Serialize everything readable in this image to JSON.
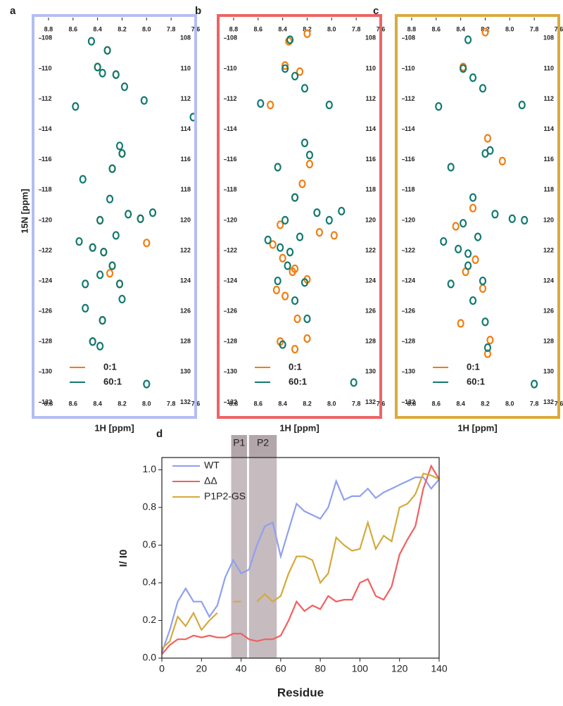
{
  "chart_data": [
    {
      "type": "scatter",
      "label": "a",
      "frame_color": "#b4bdf2",
      "xlabel": "1H [ppm]",
      "ylabel": "15N [ppm]",
      "xlim": [
        8.88,
        7.6
      ],
      "ylim": [
        106.5,
        133
      ],
      "xticks": [
        8.8,
        8.6,
        8.4,
        8.2,
        {
          "value": 8,
          "label": "8.0"
        },
        7.8,
        7.6
      ],
      "yticks": [
        108,
        110,
        112,
        114,
        116,
        118,
        120,
        122,
        124,
        126,
        128,
        130,
        132
      ],
      "series": [
        {
          "name": "0:1",
          "color": "#f07d10",
          "x": [
            8.32,
            8.4,
            8.25,
            8.28,
            8.2,
            8.38,
            8.05,
            8.44,
            8.35,
            8.28,
            8.3,
            8.22,
            8.36,
            8.44,
            8.0
          ],
          "y": [
            108.8,
            109.9,
            110.4,
            116.6,
            115.6,
            120.0,
            119.9,
            121.8,
            122.1,
            123.0,
            123.5,
            124.2,
            126.6,
            128.0,
            121.5
          ]
        },
        {
          "name": "60:1",
          "color": "#127a70",
          "x": [
            8.45,
            8.32,
            8.4,
            8.36,
            8.25,
            8.18,
            8.58,
            8.02,
            8.22,
            8.2,
            8.28,
            8.52,
            8.3,
            8.38,
            8.15,
            8.05,
            7.95,
            8.55,
            8.44,
            8.35,
            8.25,
            8.28,
            8.38,
            8.22,
            8.5,
            8.2,
            8.5,
            8.36,
            8.44,
            8.38,
            8.0,
            7.62
          ],
          "y": [
            108.2,
            108.8,
            109.9,
            110.3,
            110.4,
            111.2,
            112.5,
            112.1,
            115.1,
            115.6,
            116.6,
            117.3,
            118.6,
            120.0,
            119.6,
            119.9,
            119.5,
            121.4,
            121.8,
            122.1,
            121.0,
            123.0,
            123.6,
            124.2,
            124.2,
            125.2,
            125.8,
            126.6,
            128.0,
            128.3,
            130.8,
            113.2
          ]
        }
      ]
    },
    {
      "type": "scatter",
      "label": "b",
      "frame_color": "#ee6464",
      "xlabel": "1H [ppm]",
      "xlim": [
        8.88,
        7.6
      ],
      "ylim": [
        106.5,
        133
      ],
      "xticks": [
        8.8,
        8.6,
        8.4,
        8.2,
        {
          "value": 8,
          "label": "8.0"
        },
        7.8,
        7.6
      ],
      "yticks": [
        108,
        110,
        112,
        114,
        116,
        118,
        120,
        122,
        124,
        126,
        128,
        130,
        132
      ],
      "series": [
        {
          "name": "0:1",
          "color": "#f07d10",
          "x": [
            8.2,
            8.35,
            8.38,
            8.26,
            8.5,
            8.18,
            8.24,
            8.3,
            8.42,
            8.1,
            8.48,
            8.4,
            8.3,
            8.32,
            8.2,
            8.45,
            8.38,
            8.28,
            8.2,
            8.42,
            8.3,
            7.98
          ],
          "y": [
            107.7,
            108.2,
            109.8,
            110.2,
            112.4,
            116.3,
            117.6,
            118.5,
            120.3,
            120.8,
            121.6,
            122.5,
            123.2,
            123.4,
            123.9,
            124.6,
            125.0,
            126.5,
            127.8,
            128.0,
            128.5,
            121.0
          ]
        },
        {
          "name": "60:1",
          "color": "#127a70",
          "x": [
            8.34,
            8.38,
            8.3,
            8.22,
            8.58,
            8.02,
            8.22,
            8.18,
            8.44,
            8.3,
            8.38,
            8.12,
            8.02,
            7.92,
            8.52,
            8.42,
            8.34,
            8.26,
            8.36,
            8.22,
            8.44,
            8.3,
            8.2,
            8.4,
            7.82
          ],
          "y": [
            108.1,
            110.0,
            110.5,
            111.3,
            112.3,
            112.4,
            114.9,
            115.7,
            116.5,
            118.5,
            120.0,
            119.5,
            120.0,
            119.4,
            121.3,
            121.8,
            122.1,
            121.1,
            123.0,
            124.1,
            124.0,
            125.3,
            126.5,
            128.2,
            130.7
          ]
        }
      ]
    },
    {
      "type": "scatter",
      "label": "c",
      "frame_color": "#dcaa3c",
      "xlabel": "1H [ppm]",
      "xlim": [
        8.88,
        7.6
      ],
      "ylim": [
        106.5,
        133
      ],
      "xticks": [
        8.8,
        8.6,
        8.4,
        8.2,
        {
          "value": 8,
          "label": "8.0"
        },
        7.8,
        7.6
      ],
      "yticks": [
        108,
        110,
        112,
        114,
        116,
        118,
        120,
        122,
        124,
        126,
        128,
        130,
        132
      ],
      "series": [
        {
          "name": "0:1",
          "color": "#f07d10",
          "x": [
            8.2,
            8.38,
            8.18,
            8.06,
            8.3,
            8.44,
            8.28,
            8.36,
            8.22,
            8.4,
            8.16,
            8.18
          ],
          "y": [
            107.6,
            109.9,
            114.6,
            116.1,
            119.2,
            120.4,
            122.6,
            123.4,
            124.5,
            126.8,
            127.9,
            128.8
          ]
        },
        {
          "name": "60:1",
          "color": "#127a70",
          "x": [
            8.34,
            8.38,
            8.3,
            8.22,
            8.58,
            7.9,
            8.2,
            8.16,
            8.48,
            8.3,
            8.38,
            8.12,
            7.98,
            7.88,
            8.54,
            8.42,
            8.34,
            8.26,
            8.34,
            8.22,
            8.48,
            8.3,
            8.2,
            8.18,
            7.8
          ],
          "y": [
            108.1,
            110.0,
            110.6,
            111.3,
            112.5,
            112.4,
            115.6,
            115.4,
            116.5,
            118.5,
            120.2,
            119.6,
            119.9,
            120.0,
            121.4,
            121.9,
            122.2,
            121.1,
            123.0,
            124.0,
            124.2,
            125.3,
            126.7,
            128.4,
            130.8
          ]
        }
      ]
    },
    {
      "type": "line",
      "label": "d",
      "xlabel": "Residue",
      "ylabel": "I/ I0",
      "xlim": [
        0,
        140
      ],
      "ylim": [
        0,
        1.065
      ],
      "xticks": [
        0,
        20,
        40,
        60,
        80,
        100,
        120,
        140
      ],
      "yticks": [
        {
          "value": 0,
          "label": "0.0"
        },
        0.2,
        0.4,
        0.6,
        0.8,
        {
          "value": 1,
          "label": "1.0"
        }
      ],
      "regions": [
        {
          "label": "P1",
          "range": [
            35,
            43
          ]
        },
        {
          "label": "P2",
          "range": [
            44,
            58
          ]
        }
      ],
      "x": [
        0,
        4,
        8,
        12,
        16,
        20,
        24,
        28,
        32,
        36,
        40,
        44,
        48,
        52,
        56,
        60,
        64,
        68,
        72,
        76,
        80,
        84,
        88,
        92,
        96,
        100,
        104,
        108,
        112,
        116,
        120,
        124,
        128,
        132,
        136,
        140
      ],
      "series": [
        {
          "name": "WT",
          "color": "#8fa0f0",
          "values": [
            0.03,
            0.15,
            0.3,
            0.37,
            0.3,
            0.3,
            0.22,
            0.28,
            0.43,
            0.52,
            0.45,
            0.47,
            0.6,
            0.7,
            0.72,
            0.54,
            0.68,
            0.82,
            0.78,
            0.76,
            0.74,
            0.8,
            0.94,
            0.84,
            0.86,
            0.86,
            0.9,
            0.85,
            0.88,
            0.9,
            0.92,
            0.94,
            0.96,
            0.96,
            0.9,
            0.95
          ]
        },
        {
          "name": "ΔΔ",
          "color": "#f06060",
          "values": [
            0.02,
            0.07,
            0.1,
            0.1,
            0.12,
            0.11,
            0.12,
            0.11,
            0.11,
            0.13,
            0.13,
            0.1,
            0.09,
            0.1,
            0.1,
            0.12,
            0.2,
            0.3,
            0.25,
            0.28,
            0.26,
            0.33,
            0.3,
            0.31,
            0.31,
            0.4,
            0.42,
            0.33,
            0.31,
            0.38,
            0.55,
            0.63,
            0.7,
            0.9,
            1.02,
            0.95
          ]
        },
        {
          "name": "P1P2-GS",
          "color": "#d4aa3c",
          "values": [
            0.05,
            0.09,
            0.22,
            0.17,
            0.24,
            0.15,
            0.2,
            0.24,
            null,
            0.3,
            0.3,
            null,
            0.3,
            0.34,
            0.3,
            0.33,
            0.45,
            0.54,
            0.54,
            0.52,
            0.4,
            0.45,
            0.64,
            0.6,
            0.57,
            0.58,
            0.72,
            0.58,
            0.65,
            0.62,
            0.8,
            0.82,
            0.87,
            0.98,
            0.97,
            0.95
          ]
        }
      ]
    }
  ]
}
